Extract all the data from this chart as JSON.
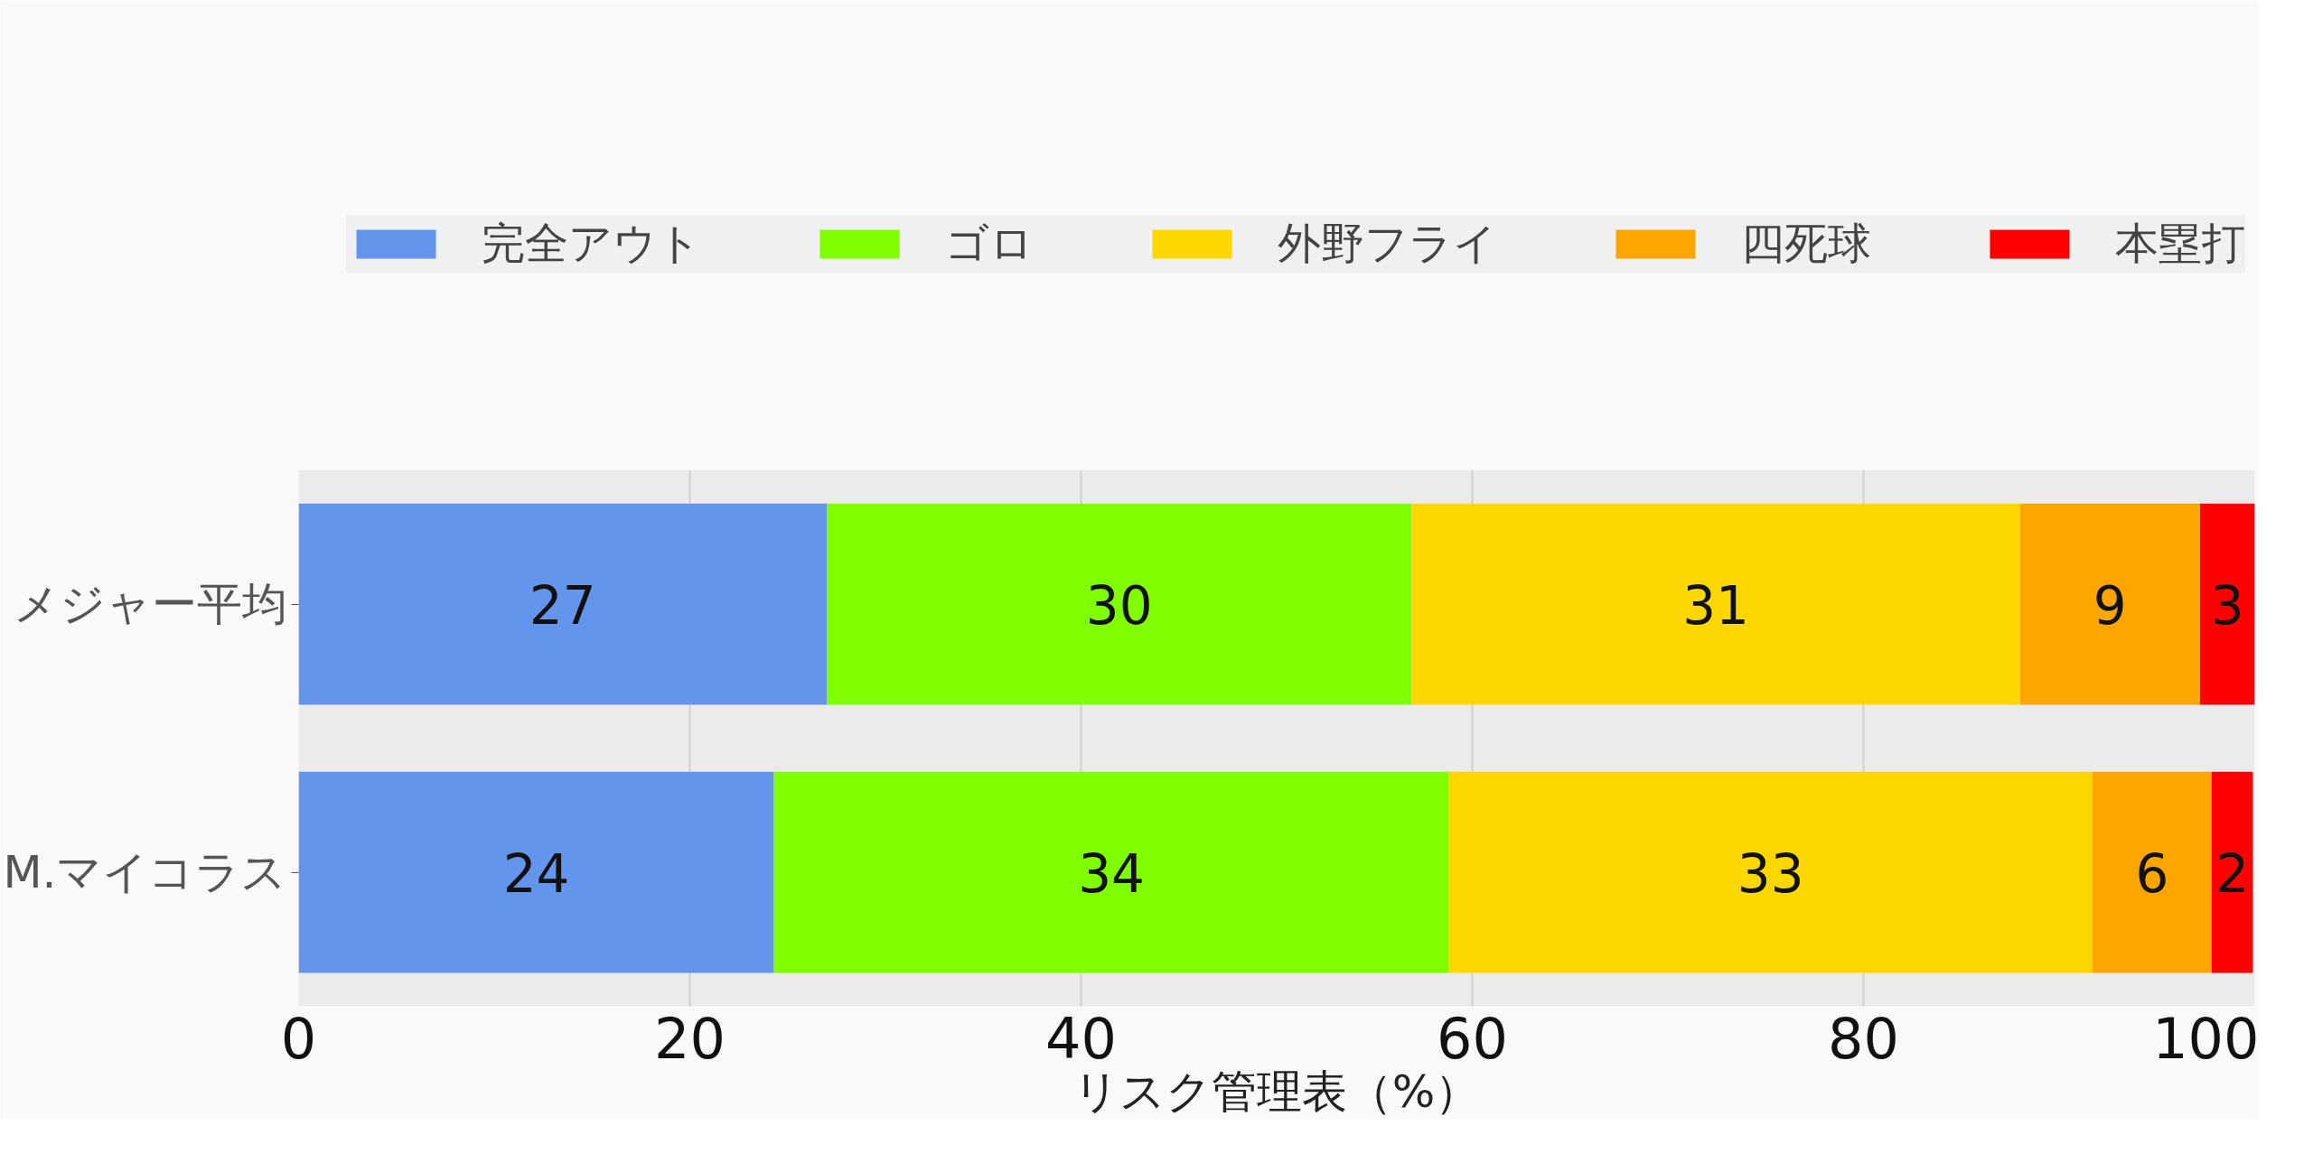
{
  "chart_data": {
    "type": "bar",
    "orientation": "horizontal",
    "stacked": true,
    "categories": [
      "メジャー平均",
      "M.マイコラス"
    ],
    "xlabel": "リスク管理表（%）",
    "xlim": [
      0,
      100
    ],
    "xticks": [
      0,
      20,
      40,
      60,
      80,
      100
    ],
    "grid": "x",
    "legend": "top",
    "series": [
      {
        "name": "完全アウト",
        "color": "#6495ed",
        "values": [
          27.0,
          24.3
        ],
        "value_labels": [
          "27",
          "24"
        ]
      },
      {
        "name": "ゴロ",
        "color": "#7fff00",
        "values": [
          29.9,
          34.5
        ],
        "value_labels": [
          "30",
          "34"
        ]
      },
      {
        "name": "外野フライ",
        "color": "#ffd700",
        "values": [
          31.1,
          32.9
        ],
        "value_labels": [
          "31",
          "33"
        ]
      },
      {
        "name": "四死球",
        "color": "#ffa500",
        "values": [
          9.2,
          6.1
        ],
        "value_labels": [
          "9",
          "6"
        ]
      },
      {
        "name": "本塁打",
        "color": "#ff0000",
        "values": [
          2.8,
          2.1
        ],
        "value_labels": [
          "3",
          "2"
        ]
      }
    ]
  }
}
